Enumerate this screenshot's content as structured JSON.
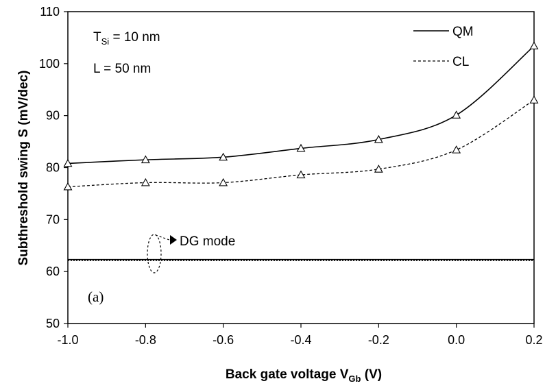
{
  "chart_data": {
    "type": "line",
    "xlabel": "Back gate voltage V",
    "xlabel_sub": "Gb",
    "xlabel_suffix": " (V)",
    "ylabel": "Subthreshold swing S (mV/dec)",
    "xlim": [
      -1.0,
      0.2
    ],
    "ylim": [
      50,
      110
    ],
    "x_ticks": [
      "-1.0",
      "-0.8",
      "-0.6",
      "-0.4",
      "-0.2",
      "0.0",
      "0.2"
    ],
    "y_ticks": [
      "50",
      "60",
      "70",
      "80",
      "90",
      "100",
      "110"
    ],
    "grid": false,
    "x": [
      -1.0,
      -0.8,
      -0.6,
      -0.4,
      -0.2,
      0.0,
      0.2
    ],
    "series": [
      {
        "name": "QM",
        "style": "solid",
        "marker": "triangle",
        "values": [
          80.8,
          81.5,
          82.0,
          83.7,
          85.4,
          90.1,
          103.4
        ]
      },
      {
        "name": "CL",
        "style": "dashed",
        "marker": "triangle",
        "values": [
          76.3,
          77.1,
          77.1,
          78.6,
          79.7,
          83.4,
          93.0
        ]
      },
      {
        "name": "DG mode QM",
        "style": "solid",
        "marker": "none",
        "values": [
          62.3,
          62.3,
          62.3,
          62.3,
          62.3,
          62.3,
          62.3
        ]
      },
      {
        "name": "DG mode CL",
        "style": "dotted",
        "marker": "none",
        "values": [
          62.1,
          62.1,
          62.1,
          62.1,
          62.1,
          62.1,
          62.1
        ]
      }
    ],
    "legend": {
      "placement": "top-right",
      "entries": [
        "QM",
        "CL"
      ]
    },
    "annotations": {
      "tsi_main": "T",
      "tsi_sub": "Si",
      "tsi_value": " = 10 nm",
      "length": "L = 50 nm",
      "dg_mode": "DG mode",
      "panel": "(a)"
    },
    "colors": {
      "lines": "#000000",
      "background": "#ffffff"
    }
  }
}
